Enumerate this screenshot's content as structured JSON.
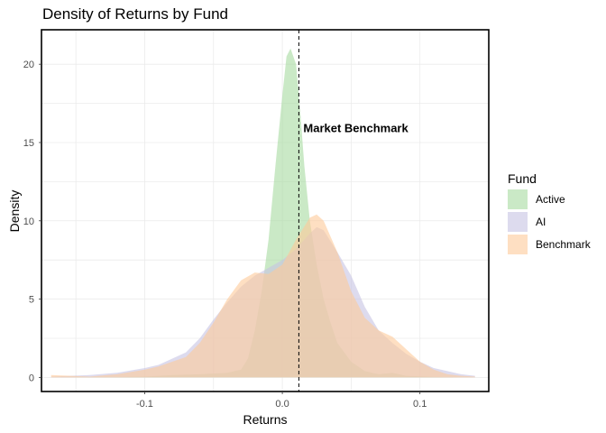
{
  "chart_data": {
    "type": "area",
    "title": "Density of Returns by Fund",
    "xlabel": "Returns",
    "ylabel": "Density",
    "xlim": [
      -0.175,
      0.15
    ],
    "ylim": [
      -0.9,
      22.2
    ],
    "x_ticks": [
      -0.1,
      0.0,
      0.1
    ],
    "x_tick_labels": [
      "-0.1",
      "0.0",
      "0.1"
    ],
    "y_ticks": [
      0,
      5,
      10,
      15,
      20
    ],
    "y_tick_labels": [
      "0",
      "5",
      "10",
      "15",
      "20"
    ],
    "grid": true,
    "legend": {
      "title": "Fund",
      "position": "right"
    },
    "vline": {
      "x": 0.012,
      "style": "dashed",
      "label": "Market Benchmark",
      "label_y": 15.9
    },
    "series": [
      {
        "name": "Active",
        "color": "#a6dba0",
        "points": [
          [
            -0.168,
            0.0
          ],
          [
            -0.12,
            0.02
          ],
          [
            -0.1,
            0.05
          ],
          [
            -0.09,
            0.1
          ],
          [
            -0.08,
            0.15
          ],
          [
            -0.06,
            0.2
          ],
          [
            -0.04,
            0.3
          ],
          [
            -0.03,
            0.5
          ],
          [
            -0.025,
            1.2
          ],
          [
            -0.02,
            3.0
          ],
          [
            -0.015,
            5.5
          ],
          [
            -0.01,
            8.8
          ],
          [
            -0.005,
            13.5
          ],
          [
            0.0,
            18.0
          ],
          [
            0.003,
            20.5
          ],
          [
            0.006,
            21.0
          ],
          [
            0.01,
            20.0
          ],
          [
            0.013,
            17.0
          ],
          [
            0.016,
            13.5
          ],
          [
            0.02,
            10.0
          ],
          [
            0.025,
            7.2
          ],
          [
            0.03,
            5.0
          ],
          [
            0.035,
            3.5
          ],
          [
            0.04,
            2.2
          ],
          [
            0.05,
            1.0
          ],
          [
            0.06,
            0.4
          ],
          [
            0.07,
            0.2
          ],
          [
            0.08,
            0.3
          ],
          [
            0.09,
            0.1
          ],
          [
            0.11,
            0.03
          ],
          [
            0.14,
            0.0
          ]
        ]
      },
      {
        "name": "AI",
        "color": "#c7c3e3",
        "points": [
          [
            -0.168,
            0.05
          ],
          [
            -0.14,
            0.15
          ],
          [
            -0.12,
            0.3
          ],
          [
            -0.1,
            0.6
          ],
          [
            -0.09,
            0.8
          ],
          [
            -0.07,
            1.6
          ],
          [
            -0.06,
            2.5
          ],
          [
            -0.05,
            3.7
          ],
          [
            -0.04,
            4.8
          ],
          [
            -0.03,
            5.8
          ],
          [
            -0.02,
            6.5
          ],
          [
            -0.01,
            7.0
          ],
          [
            0.0,
            7.5
          ],
          [
            0.01,
            8.2
          ],
          [
            0.02,
            9.2
          ],
          [
            0.025,
            9.6
          ],
          [
            0.03,
            9.4
          ],
          [
            0.04,
            8.0
          ],
          [
            0.05,
            6.5
          ],
          [
            0.06,
            4.5
          ],
          [
            0.07,
            3.0
          ],
          [
            0.08,
            2.2
          ],
          [
            0.09,
            1.5
          ],
          [
            0.1,
            1.0
          ],
          [
            0.11,
            0.6
          ],
          [
            0.12,
            0.4
          ],
          [
            0.13,
            0.2
          ],
          [
            0.14,
            0.1
          ]
        ]
      },
      {
        "name": "Benchmark",
        "color": "#fdc99a",
        "points": [
          [
            -0.168,
            0.15
          ],
          [
            -0.14,
            0.05
          ],
          [
            -0.12,
            0.2
          ],
          [
            -0.1,
            0.5
          ],
          [
            -0.09,
            0.7
          ],
          [
            -0.07,
            1.3
          ],
          [
            -0.06,
            2.2
          ],
          [
            -0.05,
            3.5
          ],
          [
            -0.04,
            5.0
          ],
          [
            -0.03,
            6.2
          ],
          [
            -0.02,
            6.7
          ],
          [
            -0.01,
            6.6
          ],
          [
            0.0,
            7.2
          ],
          [
            0.01,
            8.8
          ],
          [
            0.02,
            10.2
          ],
          [
            0.025,
            10.4
          ],
          [
            0.03,
            10.0
          ],
          [
            0.04,
            8.0
          ],
          [
            0.05,
            5.5
          ],
          [
            0.06,
            3.8
          ],
          [
            0.07,
            3.0
          ],
          [
            0.08,
            2.6
          ],
          [
            0.09,
            1.8
          ],
          [
            0.1,
            1.0
          ],
          [
            0.11,
            0.5
          ],
          [
            0.12,
            0.2
          ],
          [
            0.13,
            0.1
          ],
          [
            0.14,
            0.05
          ]
        ]
      }
    ]
  }
}
